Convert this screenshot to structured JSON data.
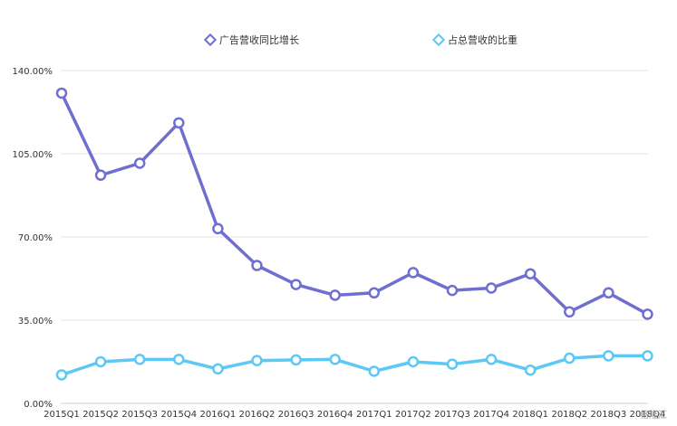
{
  "chart_data": {
    "type": "line",
    "categories": [
      "2015Q1",
      "2015Q2",
      "2015Q3",
      "2015Q4",
      "2016Q1",
      "2016Q2",
      "2016Q3",
      "2016Q4",
      "2017Q1",
      "2017Q2",
      "2017Q3",
      "2017Q4",
      "2018Q1",
      "2018Q2",
      "2018Q3",
      "2018Q4"
    ],
    "series": [
      {
        "name": "广告营收同比增长",
        "color": "#6f6fd0",
        "values": [
          130.5,
          96.0,
          101.0,
          118.0,
          73.5,
          58.0,
          50.0,
          45.5,
          46.5,
          55.0,
          47.5,
          48.5,
          54.5,
          38.5,
          46.5,
          37.5
        ]
      },
      {
        "name": "占总营收的比重",
        "color": "#5bc8f5",
        "values": [
          12.0,
          17.5,
          18.5,
          18.5,
          14.5,
          18.0,
          18.3,
          18.5,
          13.5,
          17.5,
          16.5,
          18.5,
          14.0,
          19.0,
          20.0,
          20.0
        ]
      }
    ],
    "y_ticks": [
      "0.00%",
      "35.00%",
      "70.00%",
      "105.00%",
      "140.00%"
    ],
    "ylim": [
      0,
      140
    ],
    "grid": true,
    "legend_position": "top-center"
  },
  "watermark": "格隆汇"
}
